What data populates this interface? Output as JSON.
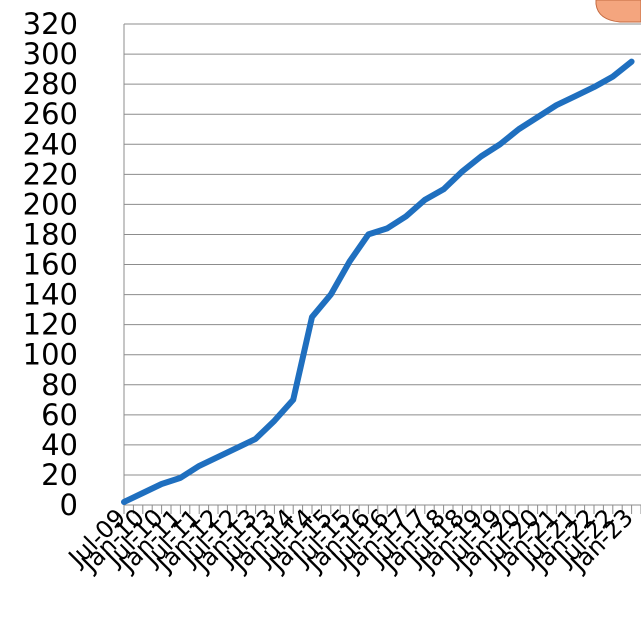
{
  "chart_data": {
    "type": "line",
    "title": "",
    "xlabel": "",
    "ylabel": "",
    "ylim": [
      0,
      320
    ],
    "yticks": [
      0,
      20,
      40,
      60,
      80,
      100,
      120,
      140,
      160,
      180,
      200,
      220,
      240,
      260,
      280,
      300,
      320
    ],
    "grid": "horizontal",
    "legend": "none",
    "x_tick_labels": [
      "Jul-09",
      "Jan-10",
      "Jul-10",
      "Jan-11",
      "Jul-11",
      "Jan-12",
      "Jul-12",
      "Jan-13",
      "Jul-13",
      "Jan-14",
      "Jul-14",
      "Jan-15",
      "Jul-15",
      "Jan-16",
      "Jul-16",
      "Jan-17",
      "Jul-17",
      "Jan-18",
      "Jul-18",
      "Jan-19",
      "Jul-19",
      "Jan-20",
      "Jul-20",
      "Jan-21",
      "Jul-21",
      "Jan-22",
      "Jul-22",
      "Jan-23"
    ],
    "series": [
      {
        "color": "#1f6fbf",
        "x": [
          "Jul-09",
          "Jan-10",
          "Jul-10",
          "Jan-11",
          "Jul-11",
          "Jan-12",
          "Jul-12",
          "Jan-13",
          "Jul-13",
          "Jan-14",
          "Jul-14",
          "Jan-15",
          "Jul-15",
          "Jan-16",
          "Jul-16",
          "Jan-17",
          "Jul-17",
          "Jan-18",
          "Jul-18",
          "Jan-19",
          "Jul-19",
          "Jan-20",
          "Jul-20",
          "Jan-21",
          "Jul-21",
          "Jan-22",
          "Jul-22",
          "Jan-23"
        ],
        "values": [
          2,
          8,
          14,
          18,
          26,
          32,
          38,
          44,
          56,
          70,
          125,
          140,
          162,
          180,
          184,
          192,
          203,
          210,
          222,
          232,
          240,
          250,
          258,
          266,
          272,
          278,
          285,
          295
        ]
      }
    ]
  },
  "decoration": {
    "callout_color": "#f4a57e",
    "callout_border": "#c46a40"
  }
}
